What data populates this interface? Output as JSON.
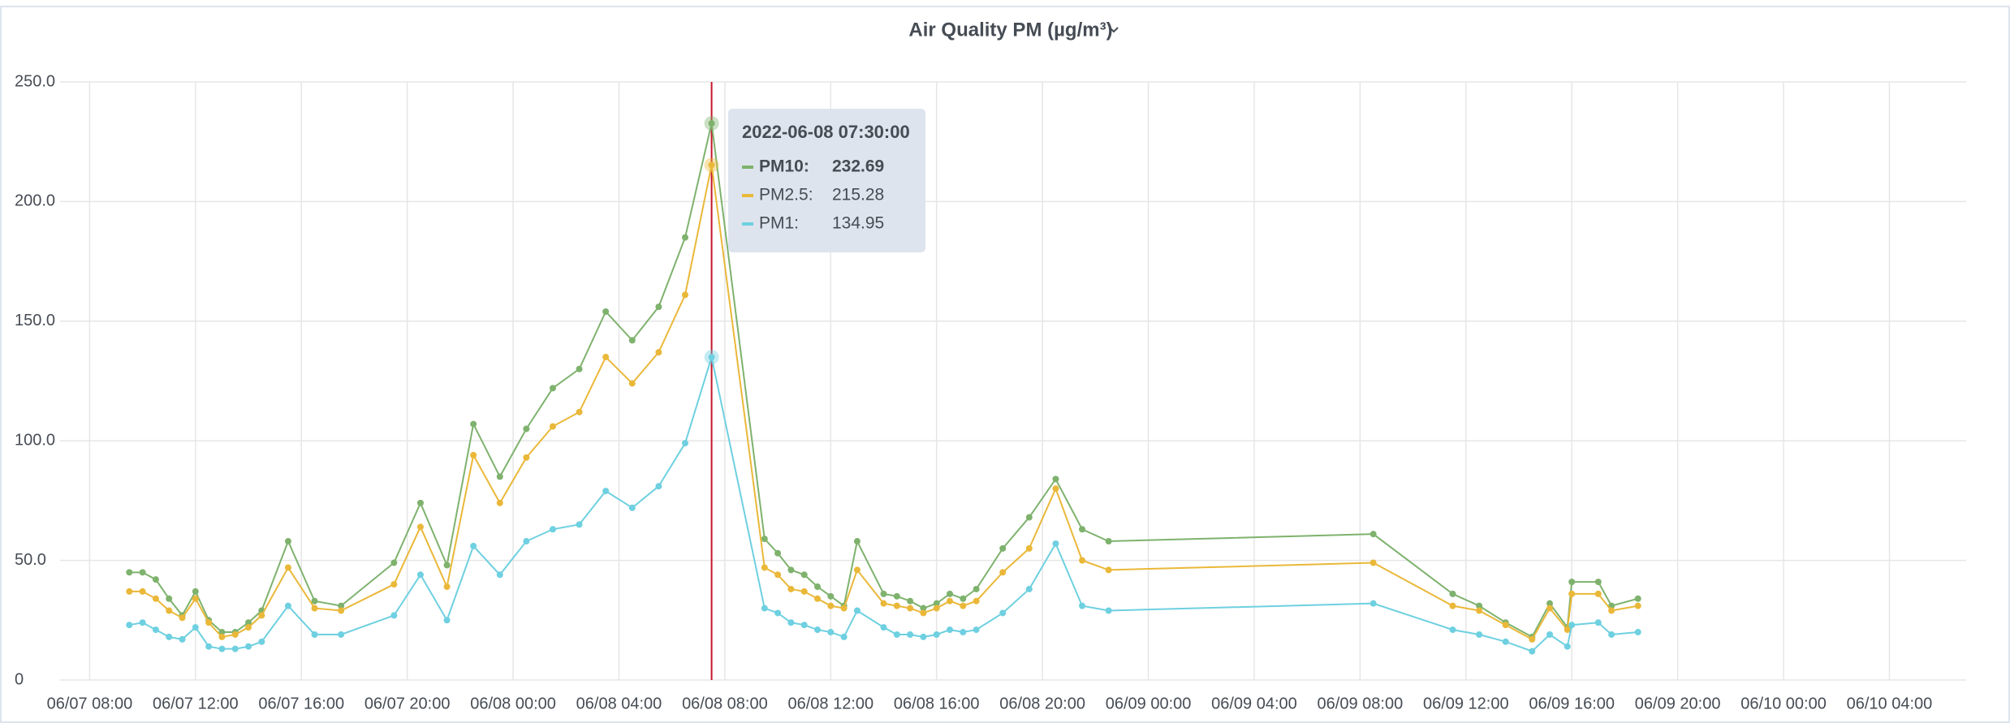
{
  "chart_data": {
    "type": "line",
    "title": "Air Quality PM (µg/m³)",
    "x": [
      "2022-06-07T09:30",
      "2022-06-07T10:00",
      "2022-06-07T10:30",
      "2022-06-07T11:00",
      "2022-06-07T11:30",
      "2022-06-07T12:00",
      "2022-06-07T12:30",
      "2022-06-07T13:00",
      "2022-06-07T13:30",
      "2022-06-07T14:00",
      "2022-06-07T14:30",
      "2022-06-07T15:30",
      "2022-06-07T16:30",
      "2022-06-07T17:30",
      "2022-06-07T19:30",
      "2022-06-07T20:30",
      "2022-06-07T21:30",
      "2022-06-07T22:30",
      "2022-06-07T23:30",
      "2022-06-08T00:30",
      "2022-06-08T01:30",
      "2022-06-08T02:30",
      "2022-06-08T03:30",
      "2022-06-08T04:30",
      "2022-06-08T05:30",
      "2022-06-08T06:30",
      "2022-06-08T07:30",
      "2022-06-08T09:30",
      "2022-06-08T10:00",
      "2022-06-08T10:30",
      "2022-06-08T11:00",
      "2022-06-08T11:30",
      "2022-06-08T12:00",
      "2022-06-08T12:30",
      "2022-06-08T13:00",
      "2022-06-08T14:00",
      "2022-06-08T14:30",
      "2022-06-08T15:00",
      "2022-06-08T15:30",
      "2022-06-08T16:00",
      "2022-06-08T16:30",
      "2022-06-08T17:00",
      "2022-06-08T17:30",
      "2022-06-08T18:30",
      "2022-06-08T19:30",
      "2022-06-08T20:30",
      "2022-06-08T21:30",
      "2022-06-08T22:30",
      "2022-06-09T08:30",
      "2022-06-09T11:30",
      "2022-06-09T12:30",
      "2022-06-09T13:30",
      "2022-06-09T14:30",
      "2022-06-09T15:10",
      "2022-06-09T15:50",
      "2022-06-09T16:00",
      "2022-06-09T17:00",
      "2022-06-09T17:30",
      "2022-06-09T18:30"
    ],
    "series": [
      {
        "name": "PM10",
        "color": "#7eb26d",
        "values": [
          45,
          45,
          42,
          34,
          27,
          37,
          25,
          20,
          20,
          24,
          29,
          58,
          33,
          31,
          49,
          74,
          48,
          107,
          85,
          105,
          122,
          130,
          154,
          142,
          156,
          185,
          232.69,
          59,
          53,
          46,
          44,
          39,
          35,
          31,
          58,
          36,
          35,
          33,
          30,
          32,
          36,
          34,
          38,
          55,
          68,
          84,
          63,
          58,
          61,
          36,
          31,
          24,
          18,
          32,
          22,
          41,
          41,
          31,
          34
        ]
      },
      {
        "name": "PM2.5",
        "color": "#eab839",
        "values": [
          37,
          37,
          34,
          29,
          26,
          34,
          24,
          18,
          19,
          22,
          27,
          47,
          30,
          29,
          40,
          64,
          39,
          94,
          74,
          93,
          106,
          112,
          135,
          124,
          137,
          161,
          215.28,
          47,
          44,
          38,
          37,
          34,
          31,
          30,
          46,
          32,
          31,
          30,
          28,
          30,
          33,
          31,
          33,
          45,
          55,
          80,
          50,
          46,
          49,
          31,
          29,
          23,
          17,
          30,
          21,
          36,
          36,
          29,
          31
        ]
      },
      {
        "name": "PM1",
        "color": "#6ed0e0",
        "values": [
          23,
          24,
          21,
          18,
          17,
          22,
          14,
          13,
          13,
          14,
          16,
          31,
          19,
          19,
          27,
          44,
          25,
          56,
          44,
          58,
          63,
          65,
          79,
          72,
          81,
          99,
          134.95,
          30,
          28,
          24,
          23,
          21,
          20,
          18,
          29,
          22,
          19,
          19,
          18,
          19,
          21,
          20,
          21,
          28,
          38,
          57,
          31,
          29,
          32,
          21,
          19,
          16,
          12,
          19,
          14,
          23,
          24,
          19,
          20
        ]
      }
    ],
    "xlim": [
      "2022-06-07T06:53",
      "2022-06-10T06:54"
    ],
    "xticks": [
      {
        "value": "2022-06-07T08:00",
        "label": "06/07 08:00"
      },
      {
        "value": "2022-06-07T12:00",
        "label": "06/07 12:00"
      },
      {
        "value": "2022-06-07T16:00",
        "label": "06/07 16:00"
      },
      {
        "value": "2022-06-07T20:00",
        "label": "06/07 20:00"
      },
      {
        "value": "2022-06-08T00:00",
        "label": "06/08 00:00"
      },
      {
        "value": "2022-06-08T04:00",
        "label": "06/08 04:00"
      },
      {
        "value": "2022-06-08T08:00",
        "label": "06/08 08:00"
      },
      {
        "value": "2022-06-08T12:00",
        "label": "06/08 12:00"
      },
      {
        "value": "2022-06-08T16:00",
        "label": "06/08 16:00"
      },
      {
        "value": "2022-06-08T20:00",
        "label": "06/08 20:00"
      },
      {
        "value": "2022-06-09T00:00",
        "label": "06/09 00:00"
      },
      {
        "value": "2022-06-09T04:00",
        "label": "06/09 04:00"
      },
      {
        "value": "2022-06-09T08:00",
        "label": "06/09 08:00"
      },
      {
        "value": "2022-06-09T12:00",
        "label": "06/09 12:00"
      },
      {
        "value": "2022-06-09T16:00",
        "label": "06/09 16:00"
      },
      {
        "value": "2022-06-09T20:00",
        "label": "06/09 20:00"
      },
      {
        "value": "2022-06-10T00:00",
        "label": "06/10 00:00"
      },
      {
        "value": "2022-06-10T04:00",
        "label": "06/10 04:00"
      }
    ],
    "ylim": [
      0,
      250
    ],
    "yticks": [
      0,
      {
        "value": 50,
        "label": "50.0"
      },
      {
        "value": 100,
        "label": "100.0"
      },
      {
        "value": 150,
        "label": "150.0"
      },
      {
        "value": 200,
        "label": "200.0"
      },
      {
        "value": 250,
        "label": "250.0"
      }
    ],
    "grid": true,
    "tooltip": {
      "title": "2022-06-08 07:30:00",
      "labels": [
        "PM10:",
        "PM2.5:",
        "PM1:"
      ],
      "crosshair_color": "#c4162a"
    }
  }
}
